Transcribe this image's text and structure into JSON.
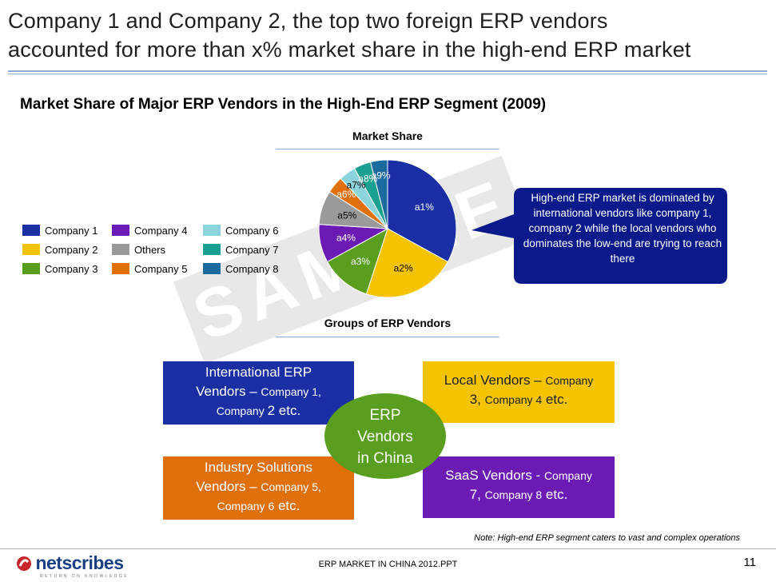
{
  "slide": {
    "title_line1": "Company 1 and Company 2, the top two foreign ERP vendors",
    "title_line2": "accounted for more than x% market share in the high-end ERP market",
    "subtitle": "Market Share of Major ERP Vendors in the High-End ERP Segment (2009)",
    "watermark": "SAMPLE"
  },
  "chart_data": {
    "type": "pie",
    "title": "Market Share",
    "slices": [
      {
        "name": "Company 1",
        "label": "a1%",
        "value": 33,
        "color": "#1a2fa3"
      },
      {
        "name": "Company 2",
        "label": "a2%",
        "value": 22,
        "color": "#f5c400"
      },
      {
        "name": "Company 3",
        "label": "a3%",
        "value": 12,
        "color": "#5a9e1f"
      },
      {
        "name": "Company 4",
        "label": "a4%",
        "value": 9,
        "color": "#6b1ab4"
      },
      {
        "name": "Others",
        "label": "a5%",
        "value": 8,
        "color": "#9a9a9a"
      },
      {
        "name": "Company 5",
        "label": "a6%",
        "value": 4,
        "color": "#e0700c"
      },
      {
        "name": "Company 6",
        "label": "a7%",
        "value": 4,
        "color": "#8cd4dc"
      },
      {
        "name": "Company 7",
        "label": "a8%",
        "value": 4,
        "color": "#1aa090"
      },
      {
        "name": "Company 8",
        "label": "a9%",
        "value": 4,
        "color": "#1b6aa0"
      }
    ],
    "legend": [
      [
        "Company 1",
        "Company 4",
        "Company 6"
      ],
      [
        "Company 2",
        "Others",
        "Company 7"
      ],
      [
        "Company 3",
        "Company 5",
        "Company 8"
      ]
    ]
  },
  "callout": {
    "text": "High-end ERP market is dominated by international vendors like company 1, company 2 while the local vendors who dominates the low-end are trying to reach there",
    "color": "#0a1a8a"
  },
  "groups": {
    "title": "Groups of ERP Vendors",
    "center": [
      "ERP",
      "Vendors",
      "in China"
    ],
    "international": {
      "l1": "International ERP",
      "l2a": "Vendors – ",
      "l2b": "Company 1,",
      "l3a": "Company ",
      "l3b": "2 etc.",
      "color": "#1a2fa3"
    },
    "local": {
      "l1a": "Local Vendors – ",
      "l1b": "Company",
      "l2a": "3, ",
      "l2b": "Company 4",
      "l2c": " etc.",
      "color": "#f5c400"
    },
    "industry": {
      "l1": "Industry Solutions",
      "l2a": "Vendors – ",
      "l2b": "Company 5,",
      "l3a": "Company 6",
      "l3b": " etc.",
      "color": "#e0700c"
    },
    "saas": {
      "l1a": "SaaS Vendors - ",
      "l1b": "Company",
      "l2a": "7, ",
      "l2b": "Company 8",
      "l2c": " etc.",
      "color": "#6b1ab4"
    },
    "center_color": "#5a9e1f"
  },
  "note": "Note: High-end ERP segment caters to vast and complex operations",
  "footer": {
    "center": "ERP MARKET IN CHINA 2012.PPT",
    "page": "11",
    "logo": "netscribes",
    "tagline": "RETURN ON KNOWLEDGE"
  }
}
